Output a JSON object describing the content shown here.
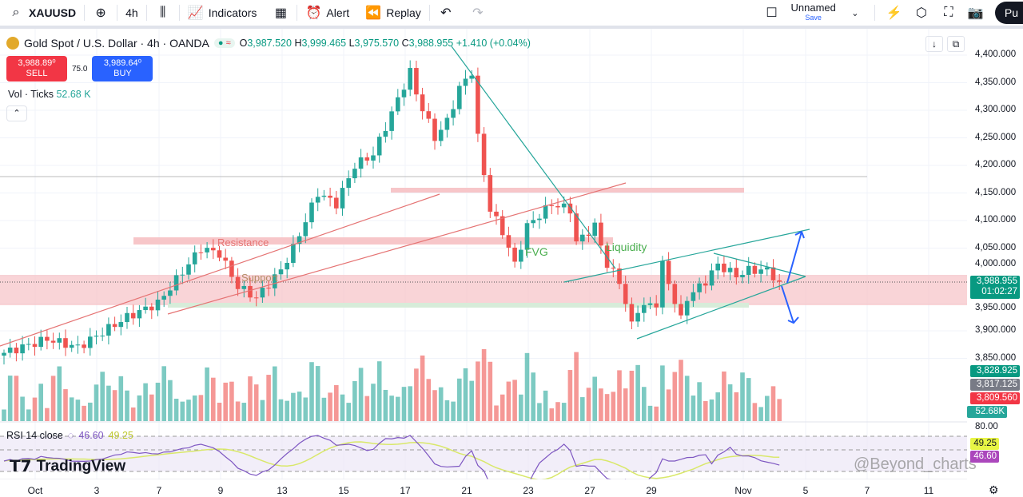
{
  "toolbar": {
    "symbol": "XAUUSD",
    "interval": "4h",
    "indicators": "Indicators",
    "alert": "Alert",
    "replay": "Replay",
    "layout_name": "Unnamed",
    "save": "Save",
    "publish": "Pu"
  },
  "legend": {
    "title": "Gold Spot / U.S. Dollar · 4h · OANDA",
    "o_label": "O",
    "o": "3,987.520",
    "h_label": "H",
    "h": "3,999.465",
    "l_label": "L",
    "l": "3,975.570",
    "c_label": "C",
    "c": "3,988.955",
    "change": "+1.410 (+0.04%)"
  },
  "trade": {
    "sell_price": "3,988.89⁰",
    "sell": "SELL",
    "spread": "75.0",
    "buy_price": "3,989.64⁰",
    "buy": "BUY"
  },
  "volume": {
    "label": "Vol · Ticks",
    "value": "52.68 K"
  },
  "rsi": {
    "label": "RSI 14 close",
    "value": "46.60",
    "ma": "49.25",
    "level": "80.00"
  },
  "price_axis": {
    "labels": [
      "4,400.000",
      "4,350.000",
      "4,300.000",
      "4,250.000",
      "4,200.000",
      "4,150.000",
      "4,100.000",
      "4,050.000",
      "4,000.000",
      "3,950.000",
      "3,900.000",
      "3,850.000"
    ],
    "tags": {
      "last": "3,988.955",
      "countdown": "01:02:27",
      "t1": "3,828.925",
      "t2": "3,817.125",
      "t3": "3,809.560",
      "vol": "52.68K",
      "rsi_ma": "49.25",
      "rsi": "46.60"
    }
  },
  "time_axis": [
    "Oct",
    "3",
    "7",
    "9",
    "13",
    "15",
    "17",
    "21",
    "23",
    "27",
    "29",
    "Nov",
    "5",
    "7",
    "11"
  ],
  "annotations": {
    "resistance": "Resistance",
    "support": "Support",
    "fvg": "FVG",
    "liquidity": "Liquidity"
  },
  "branding": {
    "logo": "TradingView",
    "watermark": "@Beyond_charts"
  },
  "colors": {
    "up": "#26a69a",
    "down": "#ef5350",
    "zone": "#f7c6c9"
  },
  "chart_data": {
    "type": "candlestick",
    "ylim": [
      3850,
      4400
    ],
    "waypoints": [
      [
        0,
        3860
      ],
      [
        7,
        3885
      ],
      [
        12,
        3870
      ],
      [
        20,
        3925
      ],
      [
        25,
        3950
      ],
      [
        32,
        4050
      ],
      [
        35,
        4040
      ],
      [
        38,
        3980
      ],
      [
        41,
        3960
      ],
      [
        45,
        4010
      ],
      [
        47,
        4050
      ],
      [
        51,
        4150
      ],
      [
        54,
        4130
      ],
      [
        57,
        4200
      ],
      [
        60,
        4220
      ],
      [
        62,
        4270
      ],
      [
        66,
        4370
      ],
      [
        67,
        4330
      ],
      [
        70,
        4250
      ],
      [
        72,
        4280
      ],
      [
        74,
        4340
      ],
      [
        76,
        4370
      ],
      [
        77,
        4250
      ],
      [
        79,
        4120
      ],
      [
        81,
        4080
      ],
      [
        83,
        4020
      ],
      [
        85,
        4090
      ],
      [
        89,
        4130
      ],
      [
        92,
        4120
      ],
      [
        93,
        4060
      ],
      [
        96,
        4090
      ],
      [
        98,
        4020
      ],
      [
        100,
        3990
      ],
      [
        102,
        3910
      ],
      [
        103,
        3940
      ],
      [
        106,
        3950
      ],
      [
        107,
        4020
      ],
      [
        110,
        3920
      ],
      [
        111,
        3960
      ],
      [
        114,
        3990
      ],
      [
        116,
        4020
      ],
      [
        119,
        4000
      ],
      [
        121,
        4010
      ],
      [
        124,
        4010
      ],
      [
        126,
        3989
      ]
    ]
  }
}
